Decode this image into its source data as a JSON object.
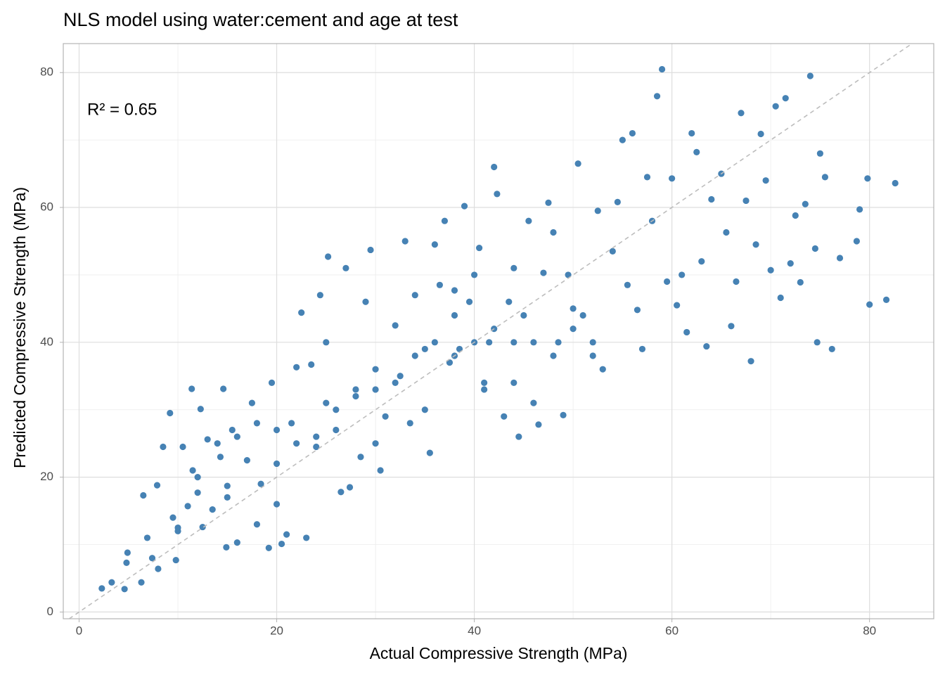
{
  "chart_data": {
    "type": "scatter",
    "title": "NLS model using water:cement and age at test",
    "x_label": "Actual Compressive Strength (MPa)",
    "y_label": "Predicted Compressive Strength (MPa)",
    "annotation": "R² = 0.65",
    "color": "#4682b4",
    "grid": true,
    "reference_line": true,
    "xlim": [
      -1.6,
      86.5
    ],
    "ylim": [
      -1.0,
      84.3
    ],
    "xticks": [
      0,
      20,
      40,
      60,
      80
    ],
    "yticks": [
      0,
      20,
      40,
      60,
      80
    ],
    "x": [
      2.3,
      3.3,
      4.6,
      4.8,
      4.9,
      6.3,
      6.5,
      6.9,
      7.4,
      7.9,
      8,
      8.5,
      9.2,
      9.5,
      9.8,
      10,
      10.5,
      11,
      11.4,
      11.5,
      12,
      12.3,
      12.5,
      13,
      13.5,
      14.3,
      14.6,
      14.9,
      15,
      15.5,
      16,
      17,
      17.5,
      18,
      18.4,
      19.2,
      19.5,
      20,
      20.5,
      21,
      21.5,
      22,
      22.5,
      23,
      23.5,
      24,
      24.4,
      25,
      25.2,
      26,
      26.5,
      27,
      27.4,
      28,
      28.5,
      29,
      29.5,
      30,
      30.5,
      31,
      32,
      32.5,
      33,
      33.5,
      34,
      35,
      35.5,
      36,
      36.5,
      37,
      37.5,
      38,
      38.5,
      39,
      39.5,
      40,
      40.5,
      41,
      41.5,
      42,
      42.3,
      43,
      43.5,
      44,
      44.5,
      45,
      45.5,
      46,
      46.5,
      47,
      47.5,
      48,
      48.5,
      49,
      49.5,
      50,
      50.5,
      51,
      52,
      52.5,
      53,
      54,
      54.5,
      55,
      55.5,
      56,
      56.5,
      57,
      57.5,
      58,
      58.5,
      59,
      59.5,
      60,
      60.5,
      61,
      61.5,
      62,
      62.5,
      63,
      63.5,
      64,
      65,
      65.5,
      66,
      66.5,
      67,
      67.5,
      68,
      68.5,
      69,
      69.5,
      70,
      70.5,
      71,
      71.5,
      72,
      72.5,
      73,
      73.5,
      74,
      74.5,
      74.7,
      75,
      75.5,
      76.2,
      77,
      78.7,
      79,
      79.8,
      80,
      81.7,
      82.6,
      10,
      12,
      14,
      16,
      18,
      20,
      22,
      24,
      26,
      28,
      30,
      32,
      34,
      36,
      38,
      40,
      42,
      44,
      46,
      48,
      50,
      52,
      30,
      25,
      35,
      20,
      15,
      44,
      38,
      41
    ],
    "values": [
      3.5,
      4.4,
      3.4,
      7.3,
      8.8,
      4.4,
      17.3,
      11,
      8,
      18.8,
      6.4,
      24.5,
      29.5,
      14,
      7.7,
      12.5,
      24.5,
      15.7,
      33.1,
      21,
      17.7,
      30.1,
      12.6,
      25.6,
      15.2,
      23,
      33.1,
      9.6,
      18.7,
      27,
      10.3,
      22.5,
      31,
      13,
      19,
      9.5,
      34,
      16,
      10.1,
      11.5,
      28,
      36.3,
      44.4,
      11,
      36.7,
      24.5,
      47,
      40,
      52.7,
      27,
      17.8,
      51,
      18.5,
      33,
      23,
      46,
      53.7,
      36,
      21,
      29,
      42.5,
      35,
      55,
      28,
      47,
      39,
      23.6,
      54.5,
      48.5,
      58,
      37,
      47.7,
      39,
      60.2,
      46,
      50,
      54,
      34,
      40,
      66,
      62,
      29,
      46,
      51,
      26,
      44,
      58,
      31,
      27.8,
      50.3,
      60.7,
      56.3,
      40,
      29.2,
      50,
      45,
      66.5,
      44,
      38,
      59.5,
      36,
      53.5,
      60.8,
      70,
      48.5,
      71,
      44.8,
      39,
      64.5,
      58,
      76.5,
      80.5,
      49,
      64.3,
      45.5,
      50,
      41.5,
      71,
      68.2,
      52,
      39.4,
      61.2,
      65,
      56.3,
      42.4,
      49,
      74,
      61,
      37.2,
      54.5,
      70.9,
      64,
      50.7,
      75,
      46.6,
      76.2,
      51.7,
      58.8,
      48.9,
      60.5,
      79.5,
      53.9,
      40,
      68,
      64.5,
      39,
      52.5,
      55,
      59.7,
      64.3,
      45.6,
      46.3,
      63.6,
      12,
      20,
      25,
      26,
      28,
      27,
      25,
      26,
      30,
      32,
      33,
      34,
      38,
      40,
      38,
      40,
      42,
      40,
      40,
      38,
      42,
      40,
      25,
      31,
      30,
      22,
      17,
      34,
      44,
      33
    ]
  }
}
